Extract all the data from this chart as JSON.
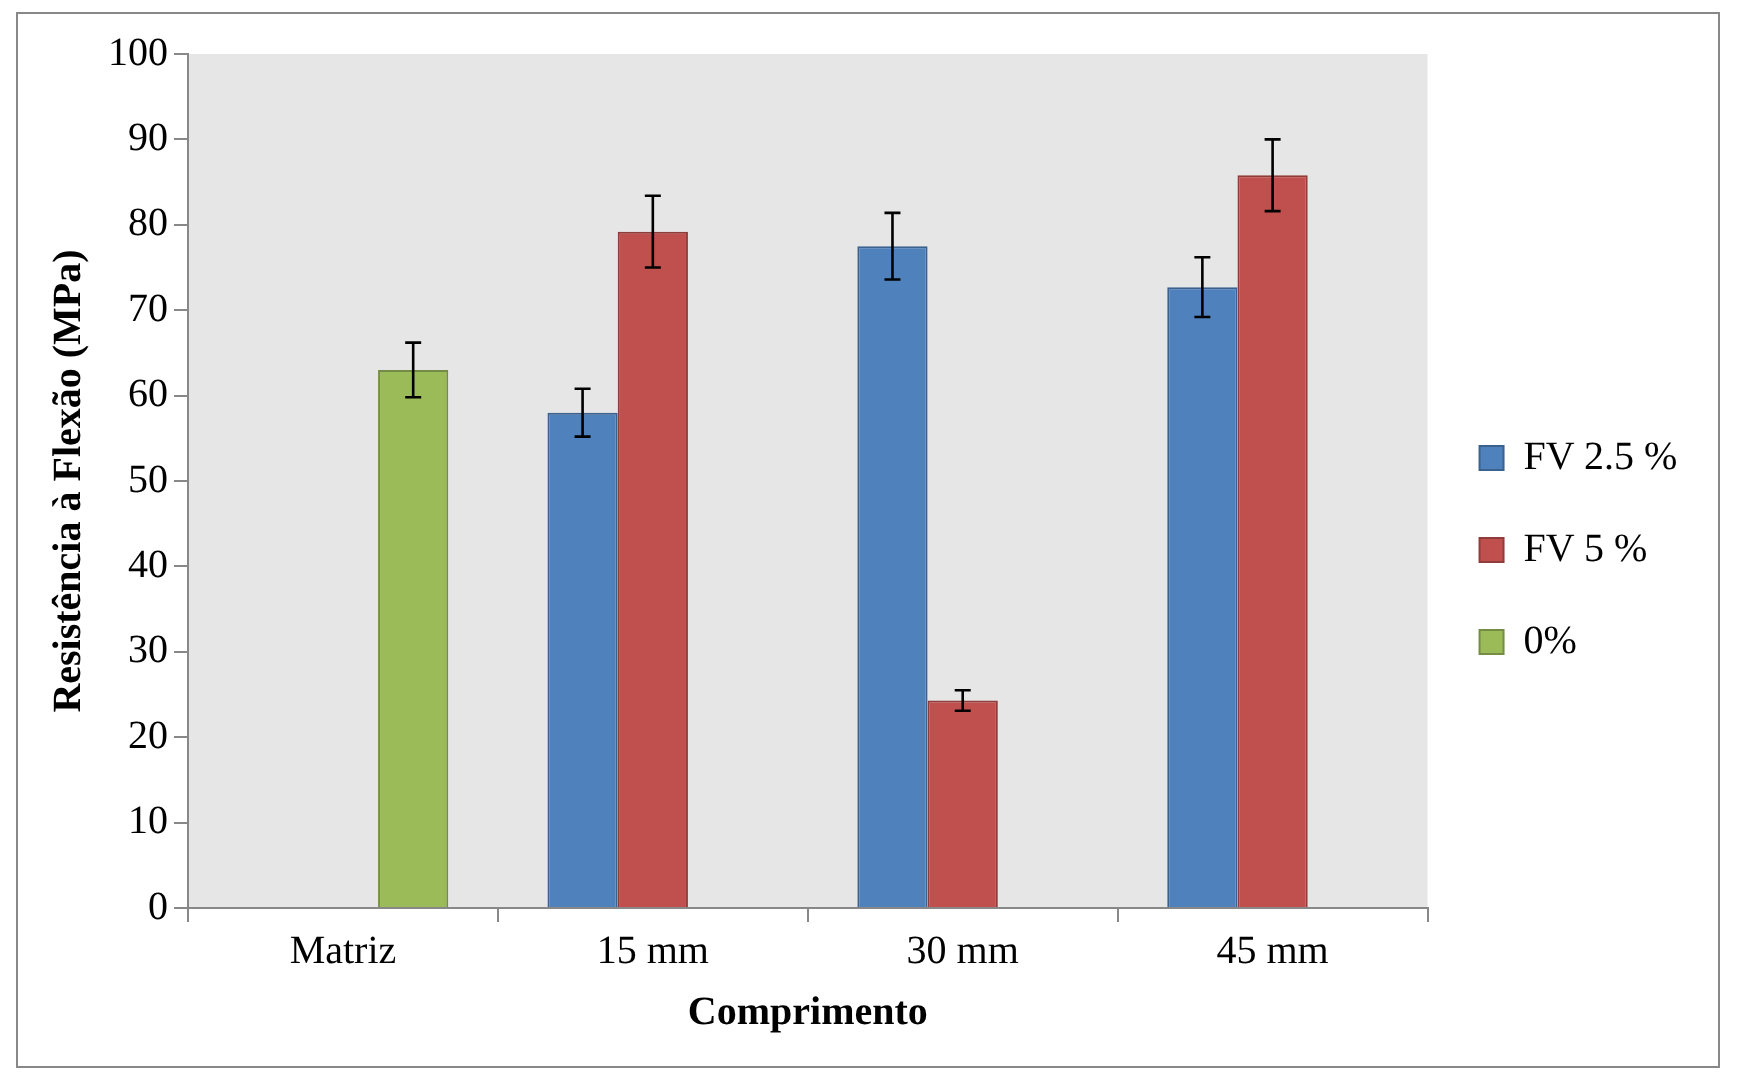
{
  "chart_data": {
    "type": "bar",
    "xlabel": "Comprimento",
    "ylabel": "Resistência à Flexão (MPa)",
    "categories": [
      "Matriz",
      "15 mm",
      "30 mm",
      "45 mm"
    ],
    "series": [
      {
        "name": "FV 2.5 %",
        "color": "#4f81bd",
        "values": [
          null,
          58.0,
          77.5,
          72.7
        ],
        "errors": [
          null,
          2.8,
          3.9,
          3.5
        ]
      },
      {
        "name": "FV 5 %",
        "color": "#c0504d",
        "values": [
          null,
          79.2,
          24.3,
          85.8
        ],
        "errors": [
          null,
          4.2,
          1.2,
          4.2
        ]
      },
      {
        "name": "0%",
        "color": "#9bbb59",
        "values": [
          63.0,
          null,
          null,
          null
        ],
        "errors": [
          3.2,
          null,
          null,
          null
        ]
      }
    ],
    "ylim": [
      0,
      100
    ],
    "yticks": [
      0,
      10,
      20,
      30,
      40,
      50,
      60,
      70,
      80,
      90,
      100
    ],
    "grid": false,
    "legend": "right"
  }
}
